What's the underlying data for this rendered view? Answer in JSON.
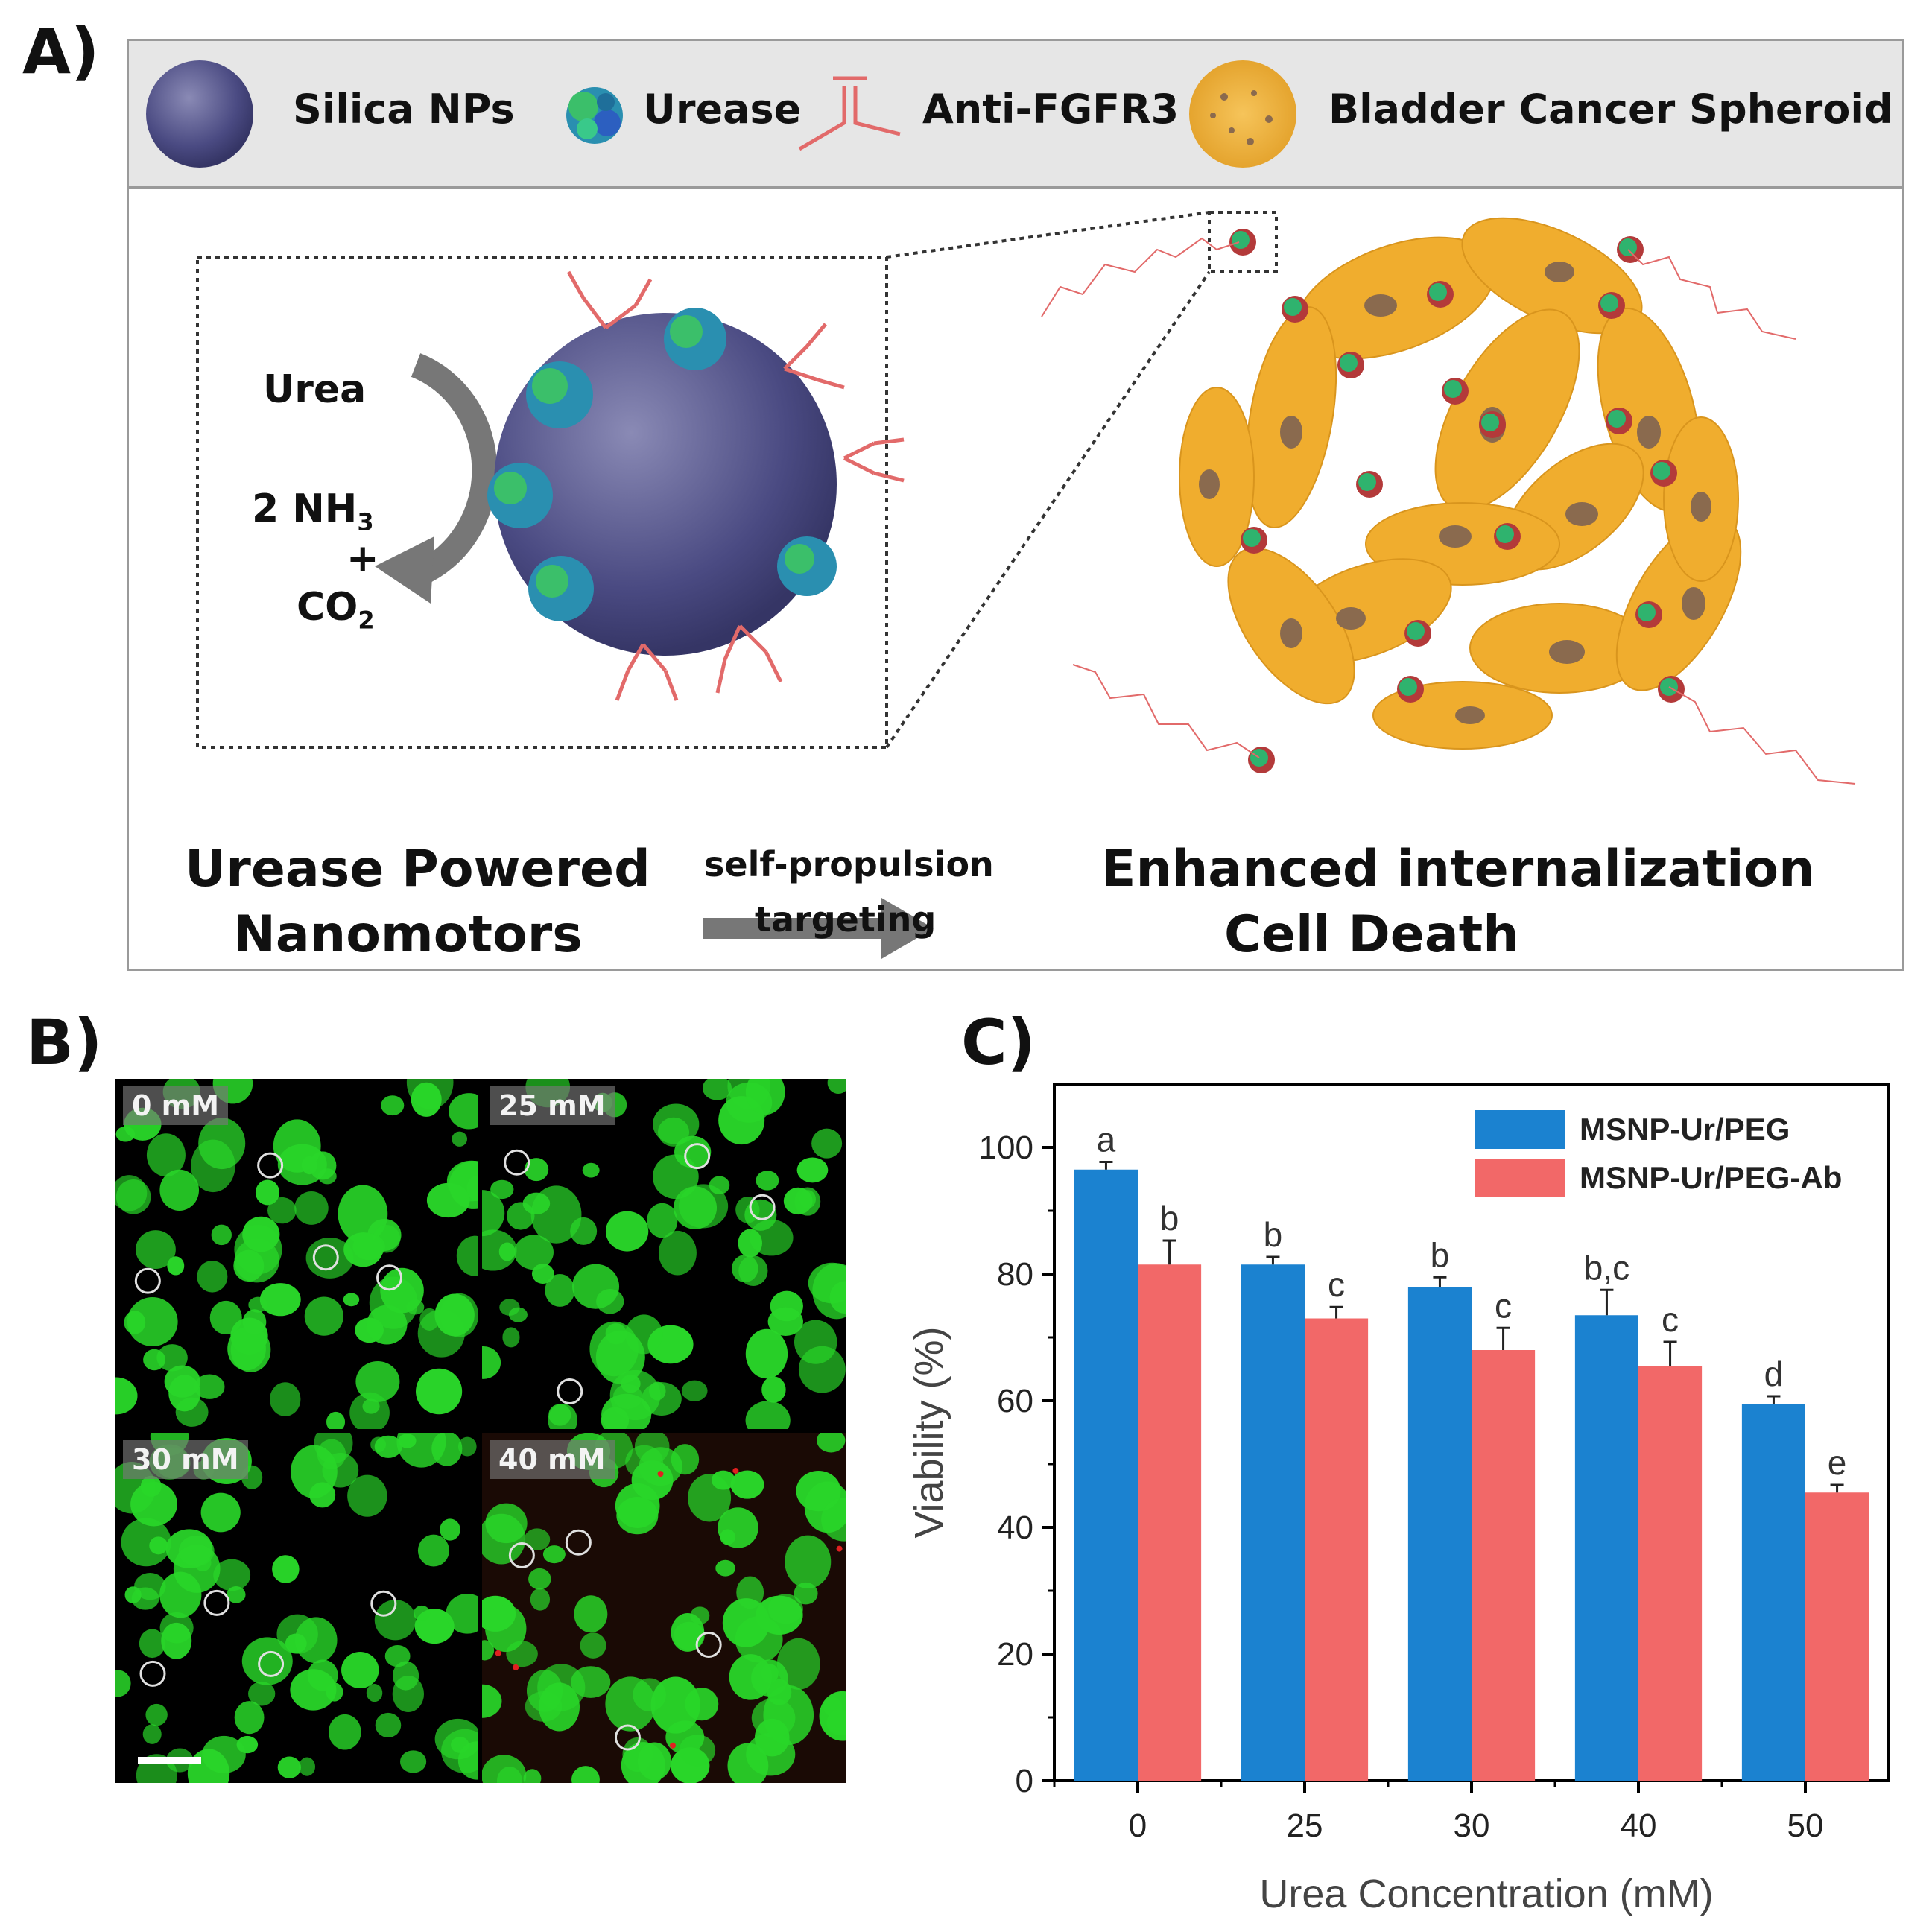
{
  "panel_labels": {
    "a": "A)",
    "b": "B)",
    "c": "C)"
  },
  "panel_a": {
    "legend": {
      "silica": "Silica NPs",
      "urease": "Urease",
      "antibody": "Anti-FGFR3",
      "spheroid": "Bladder Cancer Spheroid"
    },
    "reaction": {
      "substrate": "Urea",
      "product_line1": "2 NH",
      "product_line1_sub": "3",
      "plus": "+",
      "product_line2": "CO",
      "product_line2_sub": "2"
    },
    "bottom": {
      "left_line1": "Urease Powered",
      "left_line2": "Nanomotors",
      "arrow_top": "self-propulsion",
      "arrow_bottom": "targeting",
      "right_line1": "Enhanced internalization",
      "right_line2": "Cell Death"
    },
    "colors": {
      "nanoparticle": "#4a4a82",
      "cell": "#f0ad2e",
      "nucleus": "#8a6a4e",
      "antibody": "#e26a6a",
      "motor": "#2fb36e"
    }
  },
  "panel_b": {
    "tiles": [
      {
        "label": "0 mM"
      },
      {
        "label": "25 mM"
      },
      {
        "label": "30 mM"
      },
      {
        "label": "40 mM"
      }
    ],
    "colors": {
      "live": "#29d629",
      "background": "#000000",
      "dead": "#e02020"
    }
  },
  "chart_data": {
    "type": "bar",
    "categories": [
      "0",
      "25",
      "30",
      "40",
      "50"
    ],
    "series": [
      {
        "name": "MSNP-Ur/PEG",
        "color": "#1b82d0",
        "values": [
          96.5,
          81.5,
          78,
          73.5,
          59.5
        ],
        "errors": [
          1.2,
          1.2,
          1.5,
          4.0,
          1.2
        ],
        "letters": [
          "a",
          "b",
          "b",
          "b,c",
          "d"
        ]
      },
      {
        "name": "MSNP-Ur/PEG-Ab",
        "color": "#f26868",
        "values": [
          81.5,
          73,
          68,
          65.5,
          45.5
        ],
        "errors": [
          3.8,
          1.8,
          3.5,
          3.8,
          1.2
        ],
        "letters": [
          "b",
          "c",
          "c",
          "c",
          "e"
        ]
      }
    ],
    "xlabel": "Urea Concentration (mM)",
    "ylabel": "Viability (%)",
    "ylim": [
      0,
      110
    ],
    "yticks": [
      "0",
      "20",
      "40",
      "60",
      "80",
      "100"
    ],
    "legend_position": "top-right"
  }
}
